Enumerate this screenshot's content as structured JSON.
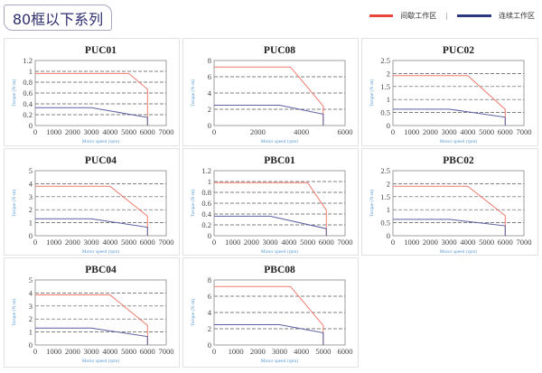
{
  "header": {
    "title": "80框以下系列"
  },
  "legend": {
    "items": [
      {
        "label": "间歇工作区",
        "color": "#e8463a"
      },
      {
        "label": "连续工作区",
        "color": "#2b3a7e"
      }
    ],
    "separator": "|"
  },
  "colors": {
    "intermittent": "#f07a6e",
    "continuous": "#5a60a0",
    "grid": "#555555",
    "axis_label": "#5b9bd5"
  },
  "chart_data": [
    {
      "type": "line",
      "title": "PUC01",
      "xlabel": "Motor speed (rpm)",
      "ylabel": "Torque (N·m)",
      "xlim": [
        0,
        7000
      ],
      "xstep": 1000,
      "ylim": [
        0,
        1.2
      ],
      "ystep": 0.2,
      "yticks": [
        "0",
        "0.2",
        "0.4",
        "0.6",
        "0.8",
        "1",
        "1.2"
      ],
      "grid": "dashed",
      "series": [
        {
          "name": "间歇工作区",
          "points": [
            [
              0,
              0.96
            ],
            [
              5000,
              0.96
            ],
            [
              6000,
              0.67
            ],
            [
              6000,
              0
            ]
          ]
        },
        {
          "name": "连续工作区",
          "points": [
            [
              0,
              0.33
            ],
            [
              3000,
              0.33
            ],
            [
              6000,
              0.15
            ],
            [
              6000,
              0
            ]
          ]
        }
      ]
    },
    {
      "type": "line",
      "title": "PUC08",
      "xlabel": "Motor speed (rpm)",
      "ylabel": "Torque (N·m)",
      "xlim": [
        0,
        6000
      ],
      "xstep": 2000,
      "ylim": [
        0,
        8
      ],
      "ystep": 2,
      "yticks": [
        "0",
        "2",
        "4",
        "6",
        "8"
      ],
      "grid": "dashed",
      "series": [
        {
          "name": "间歇工作区",
          "points": [
            [
              0,
              7.2
            ],
            [
              3500,
              7.2
            ],
            [
              5000,
              2.4
            ],
            [
              5000,
              0
            ]
          ]
        },
        {
          "name": "连续工作区",
          "points": [
            [
              0,
              2.5
            ],
            [
              3000,
              2.5
            ],
            [
              5000,
              1.4
            ],
            [
              5000,
              0
            ]
          ]
        }
      ]
    },
    {
      "type": "line",
      "title": "PUC02",
      "xlabel": "Motor speed (rpm)",
      "ylabel": "Torque (N·m)",
      "xlim": [
        0,
        7000
      ],
      "xstep": 1000,
      "ylim": [
        0,
        2.5
      ],
      "ystep": 0.5,
      "yticks": [
        "0",
        "0.5",
        "1",
        "1.5",
        "2",
        "2.5"
      ],
      "grid": "dashed",
      "series": [
        {
          "name": "间歇工作区",
          "points": [
            [
              0,
              1.92
            ],
            [
              4000,
              1.92
            ],
            [
              6000,
              0.62
            ],
            [
              6000,
              0
            ]
          ]
        },
        {
          "name": "连续工作区",
          "points": [
            [
              0,
              0.63
            ],
            [
              3000,
              0.63
            ],
            [
              6000,
              0.32
            ],
            [
              6000,
              0
            ]
          ]
        }
      ]
    },
    {
      "type": "line",
      "title": "PUC04",
      "xlabel": "Motor speed (rpm)",
      "ylabel": "Torque (N·m)",
      "xlim": [
        0,
        7000
      ],
      "xstep": 1000,
      "ylim": [
        0,
        5
      ],
      "ystep": 1,
      "yticks": [
        "0",
        "1",
        "2",
        "3",
        "4",
        "5"
      ],
      "grid": "dashed",
      "series": [
        {
          "name": "间歇工作区",
          "points": [
            [
              0,
              3.8
            ],
            [
              4000,
              3.8
            ],
            [
              6000,
              1.5
            ],
            [
              6000,
              0
            ]
          ]
        },
        {
          "name": "连续工作区",
          "points": [
            [
              0,
              1.3
            ],
            [
              3000,
              1.3
            ],
            [
              6000,
              0.65
            ],
            [
              6000,
              0
            ]
          ]
        }
      ]
    },
    {
      "type": "line",
      "title": "PBC01",
      "xlabel": "Motor speed (rpm)",
      "ylabel": "Torque (N·m)",
      "xlim": [
        0,
        7000
      ],
      "xstep": 1000,
      "ylim": [
        0,
        1.2
      ],
      "ystep": 0.2,
      "yticks": [
        "0",
        "0.2",
        "0.4",
        "0.6",
        "0.8",
        "1",
        "1.2"
      ],
      "grid": "dashed",
      "series": [
        {
          "name": "间歇工作区",
          "points": [
            [
              0,
              0.98
            ],
            [
              5000,
              0.98
            ],
            [
              6000,
              0.47
            ],
            [
              6000,
              0
            ]
          ]
        },
        {
          "name": "连续工作区",
          "points": [
            [
              0,
              0.36
            ],
            [
              3000,
              0.36
            ],
            [
              6000,
              0.13
            ],
            [
              6000,
              0
            ]
          ]
        }
      ]
    },
    {
      "type": "line",
      "title": "PBC02",
      "xlabel": "Motor speed (rpm)",
      "ylabel": "Torque (N·m)",
      "xlim": [
        0,
        7000
      ],
      "xstep": 1000,
      "ylim": [
        0,
        2.5
      ],
      "ystep": 0.5,
      "yticks": [
        "0",
        "0.5",
        "1",
        "1.5",
        "2",
        "2.5"
      ],
      "grid": "dashed",
      "series": [
        {
          "name": "间歇工作区",
          "points": [
            [
              0,
              1.9
            ],
            [
              4000,
              1.9
            ],
            [
              6000,
              0.77
            ],
            [
              6000,
              0
            ]
          ]
        },
        {
          "name": "连续工作区",
          "points": [
            [
              0,
              0.63
            ],
            [
              3000,
              0.63
            ],
            [
              6000,
              0.38
            ],
            [
              6000,
              0
            ]
          ]
        }
      ]
    },
    {
      "type": "line",
      "title": "PBC04",
      "xlabel": "Motor speed (rpm)",
      "ylabel": "Torque (N·m)",
      "xlim": [
        0,
        7000
      ],
      "xstep": 1000,
      "ylim": [
        0,
        5
      ],
      "ystep": 1,
      "yticks": [
        "0",
        "1",
        "2",
        "3",
        "4",
        "5"
      ],
      "grid": "dashed",
      "series": [
        {
          "name": "间歇工作区",
          "points": [
            [
              0,
              3.85
            ],
            [
              4000,
              3.85
            ],
            [
              6000,
              1.5
            ],
            [
              6000,
              0
            ]
          ]
        },
        {
          "name": "连续工作区",
          "points": [
            [
              0,
              1.3
            ],
            [
              3000,
              1.3
            ],
            [
              6000,
              0.65
            ],
            [
              6000,
              0
            ]
          ]
        }
      ]
    },
    {
      "type": "line",
      "title": "PBC08",
      "xlabel": "Motor speed (rpm)",
      "ylabel": "Torque (N·m)",
      "xlim": [
        0,
        6000
      ],
      "xstep": 1000,
      "ylim": [
        0,
        8
      ],
      "ystep": 2,
      "yticks": [
        "0",
        "2",
        "4",
        "6",
        "8"
      ],
      "grid": "dashed",
      "series": [
        {
          "name": "间歇工作区",
          "points": [
            [
              0,
              7.2
            ],
            [
              3500,
              7.2
            ],
            [
              5000,
              2.4
            ],
            [
              5000,
              0
            ]
          ]
        },
        {
          "name": "连续工作区",
          "points": [
            [
              0,
              2.5
            ],
            [
              3000,
              2.5
            ],
            [
              5000,
              1.5
            ],
            [
              5000,
              0
            ]
          ]
        }
      ]
    }
  ]
}
